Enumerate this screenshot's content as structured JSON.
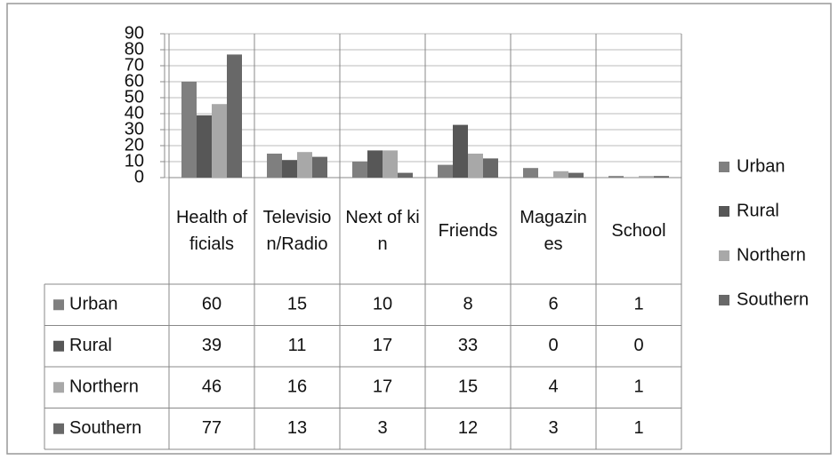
{
  "chart_data": {
    "type": "bar",
    "categories": [
      "Health officials",
      "Television/Radio",
      "Next of kin",
      "Friends",
      "Magazines",
      "School"
    ],
    "series": [
      {
        "name": "Urban",
        "color": "#7f7f7f",
        "values": [
          60,
          15,
          10,
          8,
          6,
          1
        ]
      },
      {
        "name": "Rural",
        "color": "#575757",
        "values": [
          39,
          11,
          17,
          33,
          0,
          0
        ]
      },
      {
        "name": "Northern",
        "color": "#a8a8a8",
        "values": [
          46,
          16,
          17,
          15,
          4,
          1
        ]
      },
      {
        "name": "Southern",
        "color": "#686868",
        "values": [
          77,
          13,
          3,
          12,
          3,
          1
        ]
      }
    ],
    "ylim": [
      0,
      90
    ],
    "yticks": [
      0,
      10,
      20,
      30,
      40,
      50,
      60,
      70,
      80,
      90
    ],
    "grid": true,
    "legend": "right"
  }
}
